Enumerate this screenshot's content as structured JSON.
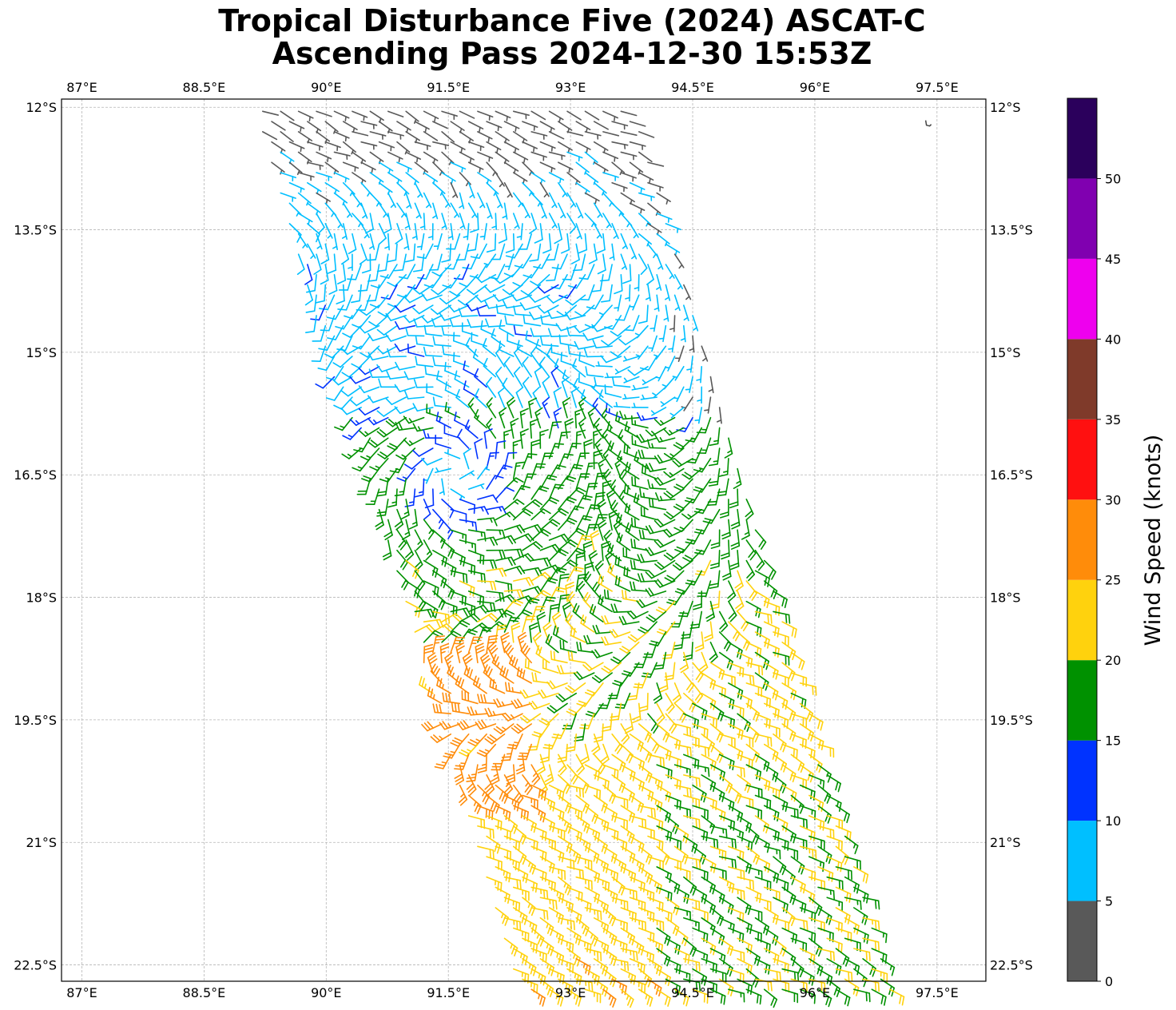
{
  "title": {
    "line1": "Tropical Disturbance Five (2024) ASCAT-C",
    "line2": "Ascending Pass 2024-12-30 15:53Z"
  },
  "map": {
    "lon_range": [
      86.75,
      98.1
    ],
    "lat_range": [
      -22.7,
      -11.9
    ],
    "lon_ticks": [
      "87°E",
      "88.5°E",
      "90°E",
      "91.5°E",
      "93°E",
      "94.5°E",
      "96°E",
      "97.5°E"
    ],
    "lat_ticks": [
      "12°S",
      "13.5°S",
      "15°S",
      "16.5°S",
      "18°S",
      "19.5°S",
      "21°S",
      "22.5°S"
    ],
    "grid": true,
    "land_feature": "small island near 97.4°E 12.2°S",
    "storm_center": {
      "lon": 91.6,
      "lat": -16.5
    }
  },
  "colorbar": {
    "label": "Wind Speed (knots)",
    "ticks": [
      "0",
      "5",
      "10",
      "15",
      "20",
      "25",
      "30",
      "35",
      "40",
      "45",
      "50"
    ],
    "bins": [
      {
        "from": 0,
        "to": 5,
        "color": "#595959"
      },
      {
        "from": 5,
        "to": 10,
        "color": "#00bfff"
      },
      {
        "from": 10,
        "to": 15,
        "color": "#0033ff"
      },
      {
        "from": 15,
        "to": 20,
        "color": "#009100"
      },
      {
        "from": 20,
        "to": 25,
        "color": "#ffd20d"
      },
      {
        "from": 25,
        "to": 30,
        "color": "#ff8c0a"
      },
      {
        "from": 30,
        "to": 35,
        "color": "#ff1010"
      },
      {
        "from": 35,
        "to": 40,
        "color": "#7f3a2a"
      },
      {
        "from": 40,
        "to": 45,
        "color": "#ee00ee"
      },
      {
        "from": 45,
        "to": 50,
        "color": "#8000b0"
      },
      {
        "from": 50,
        "to": 55,
        "color": "#2b005c"
      }
    ]
  },
  "swath": {
    "corners": [
      [
        89.1,
        -12.0
      ],
      [
        93.8,
        -12.0
      ],
      [
        97.0,
        -22.9
      ],
      [
        92.4,
        -22.9
      ]
    ]
  }
}
